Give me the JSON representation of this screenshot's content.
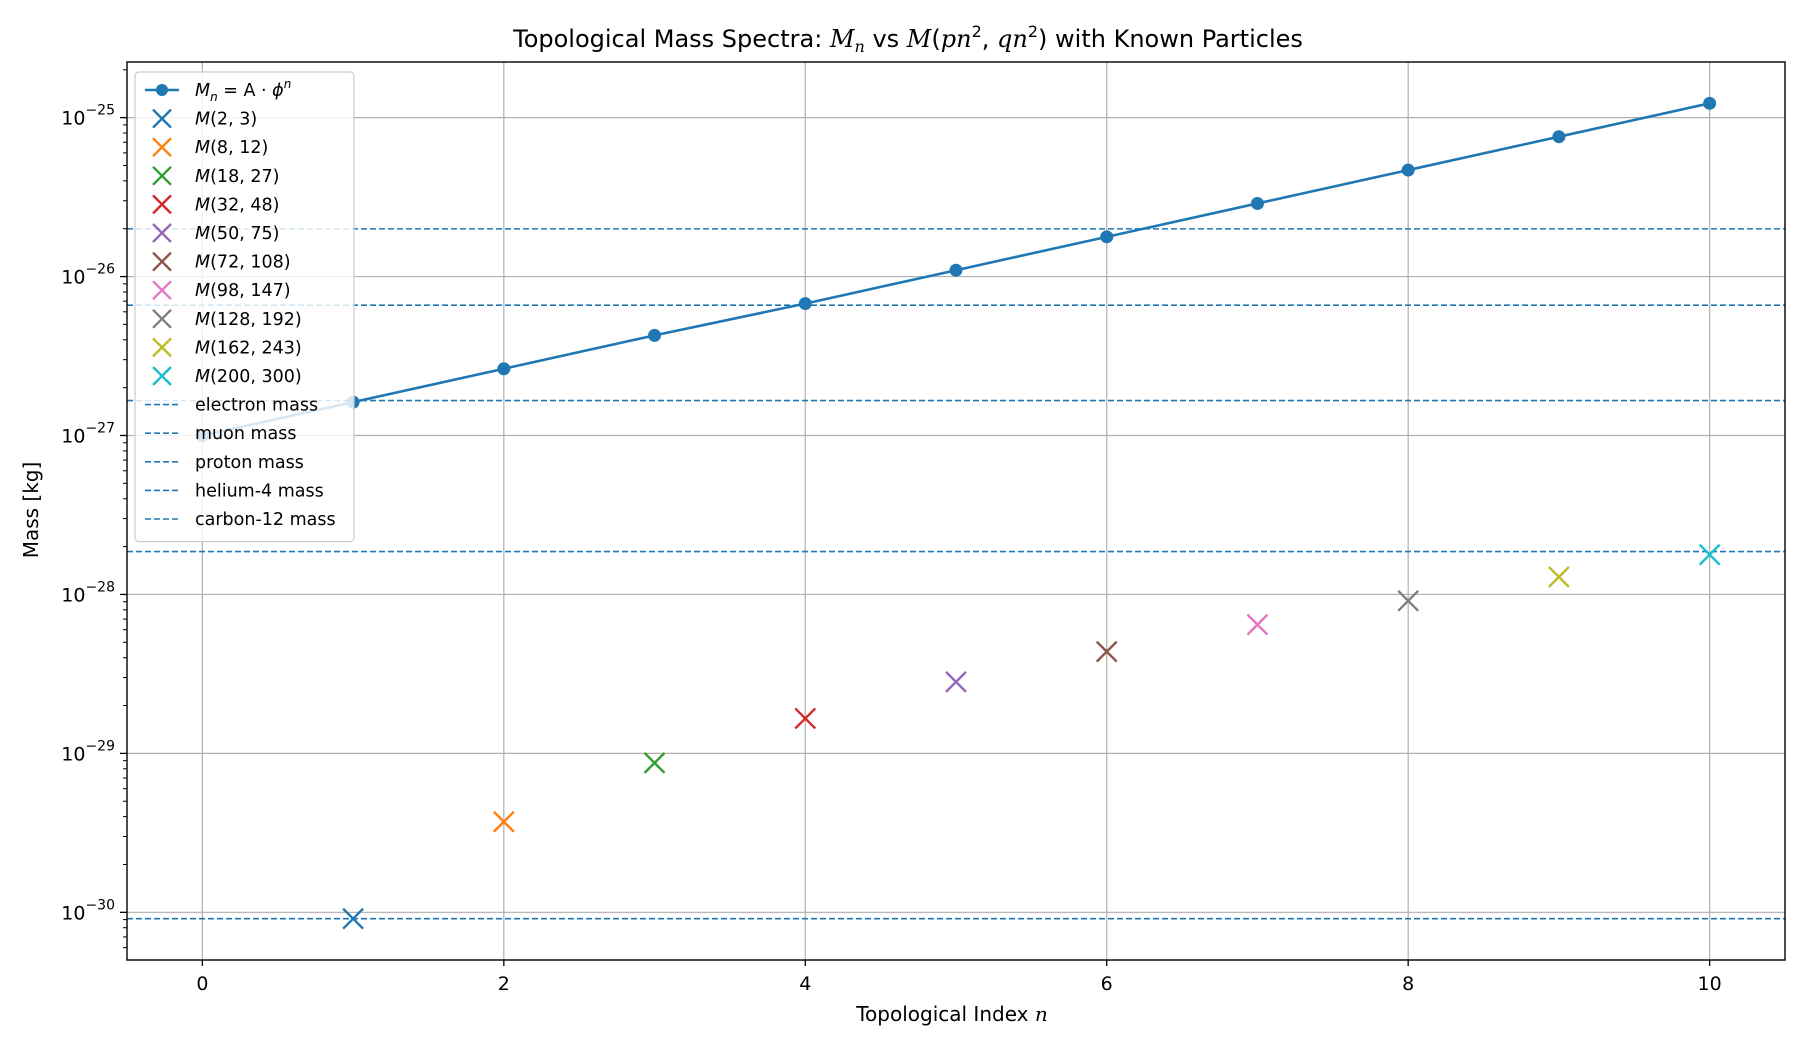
{
  "chart_data": {
    "type": "scatter",
    "title": {
      "prefix": "Topological Mass Spectra: ",
      "mn_base": "M",
      "mn_sub": "n",
      "vs_text": " vs ",
      "m_base": "M",
      "m_paren_open": "(",
      "m_p": "pn",
      "m_sup1": "2",
      "m_comma": ", ",
      "m_q": "qn",
      "m_sup2": "2",
      "m_paren_close": ")",
      "suffix": " with Known Particles"
    },
    "xlabel": {
      "text": "Topological Index ",
      "var": "n"
    },
    "ylabel": "Mass [kg]",
    "xlim": [
      -0.5,
      10.5
    ],
    "ylim_log10": [
      -30.3,
      -24.65
    ],
    "y_scale": "log",
    "grid": true,
    "legend_position": "upper-left",
    "x_ticks": [
      {
        "value": 0,
        "label": "0"
      },
      {
        "value": 2,
        "label": "2"
      },
      {
        "value": 4,
        "label": "4"
      },
      {
        "value": 6,
        "label": "6"
      },
      {
        "value": 8,
        "label": "8"
      },
      {
        "value": 10,
        "label": "10"
      }
    ],
    "y_ticks": [
      {
        "exp": -30,
        "base": "10",
        "sup": "−30"
      },
      {
        "exp": -29,
        "base": "10",
        "sup": "−29"
      },
      {
        "exp": -28,
        "base": "10",
        "sup": "−28"
      },
      {
        "exp": -27,
        "base": "10",
        "sup": "−27"
      },
      {
        "exp": -26,
        "base": "10",
        "sup": "−26"
      },
      {
        "exp": -25,
        "base": "10",
        "sup": "−25"
      }
    ],
    "line_series": {
      "legend": {
        "M": "M",
        "sub": "n",
        "rest": " = A · ",
        "phi": "ϕ",
        "sup": "n"
      },
      "color": "#1f77b4",
      "x": [
        0,
        1,
        2,
        3,
        4,
        5,
        6,
        7,
        8,
        9,
        10
      ],
      "y_log10": [
        -27.0,
        -26.79,
        -26.58,
        -26.37,
        -26.17,
        -25.96,
        -25.75,
        -25.54,
        -25.33,
        -25.12,
        -24.91
      ]
    },
    "scatter_points": [
      {
        "label": "M(2, 3)",
        "x": 1,
        "y_log10": -30.04,
        "color": "#1f77b4"
      },
      {
        "label": "M(8, 12)",
        "x": 2,
        "y_log10": -29.43,
        "color": "#ff7f0e"
      },
      {
        "label": "M(18, 27)",
        "x": 3,
        "y_log10": -29.06,
        "color": "#2ca02c"
      },
      {
        "label": "M(32, 48)",
        "x": 4,
        "y_log10": -28.78,
        "color": "#d62728"
      },
      {
        "label": "M(50, 75)",
        "x": 5,
        "y_log10": -28.55,
        "color": "#9467bd"
      },
      {
        "label": "M(72, 108)",
        "x": 6,
        "y_log10": -28.36,
        "color": "#8c564b"
      },
      {
        "label": "M(98, 147)",
        "x": 7,
        "y_log10": -28.19,
        "color": "#e377c2"
      },
      {
        "label": "M(128, 192)",
        "x": 8,
        "y_log10": -28.04,
        "color": "#7f7f7f"
      },
      {
        "label": "M(162, 243)",
        "x": 9,
        "y_log10": -27.89,
        "color": "#bcbd22"
      },
      {
        "label": "M(200, 300)",
        "x": 10,
        "y_log10": -27.75,
        "color": "#17becf"
      }
    ],
    "reference_lines": [
      {
        "label": "electron mass",
        "y_log10": -30.04,
        "color": "#1f77b4"
      },
      {
        "label": "muon mass",
        "y_log10": -27.73,
        "color": "#1f77b4"
      },
      {
        "label": "proton mass",
        "y_log10": -26.78,
        "color": "#1f77b4"
      },
      {
        "label": "helium-4 mass",
        "y_log10": -26.18,
        "color": "#1f77b4"
      },
      {
        "label": "carbon-12 mass",
        "y_log10": -25.7,
        "color": "#1f77b4"
      }
    ]
  }
}
